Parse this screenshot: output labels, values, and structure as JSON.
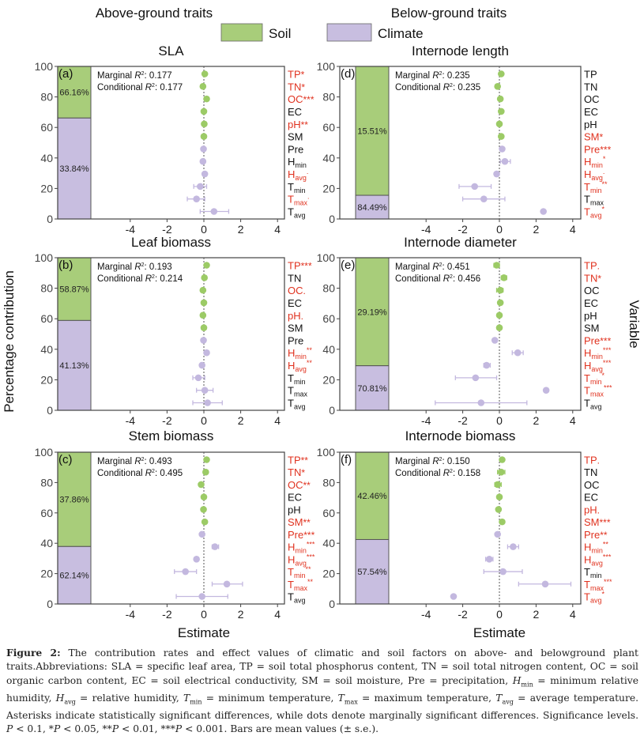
{
  "headers": {
    "above": "Above-ground traits",
    "below": "Below-ground traits"
  },
  "legend": [
    {
      "label": "Soil",
      "color": "#a8cd7a"
    },
    {
      "label": "Climate",
      "color": "#c8bee0"
    }
  ],
  "axis": {
    "ylabel": "Percentage contribution",
    "xlabel": "Estimate",
    "right_label": "Variable",
    "yticks": [
      0,
      20,
      40,
      60,
      80,
      100
    ],
    "xticks": [
      -4,
      -2,
      0,
      2,
      4
    ],
    "xlim": [
      -4.3,
      4.3
    ]
  },
  "colors": {
    "soil": "#a8cd7a",
    "climate": "#c8bee0",
    "soil_dot": "#9ccb66",
    "climate_dot": "#c3b8df",
    "sig": "#e0321f",
    "nonsig": "#111111"
  },
  "chart_data": [
    {
      "type": "scatter",
      "panel": "(a)",
      "title": "SLA",
      "soil_pct": "66.16%",
      "climate_pct": "33.84%",
      "soil_value": 66.16,
      "marginal": "Marginal R²: 0.177",
      "marginal_val": "0.177",
      "conditional_val": "0.177",
      "vars": [
        {
          "n": "TP",
          "s": "",
          "sig": "*",
          "est": 0.05
        },
        {
          "n": "TN",
          "s": "",
          "sig": "*",
          "est": -0.05
        },
        {
          "n": "OC",
          "s": "",
          "sig": "***",
          "est": 0.15
        },
        {
          "n": "EC",
          "s": "",
          "sig": "",
          "est": 0
        },
        {
          "n": "pH",
          "s": "",
          "sig": "**",
          "est": 0.02
        },
        {
          "n": "SM",
          "s": "",
          "sig": "",
          "est": 0
        },
        {
          "n": "Pre",
          "s": "",
          "sig": "",
          "est": -0.02
        },
        {
          "n": "H",
          "s": "min",
          "sig": "",
          "est": -0.05
        },
        {
          "n": "H",
          "s": "avg",
          "sig": ".",
          "est": 0.05
        },
        {
          "n": "T",
          "s": "min",
          "sig": "",
          "est": -0.2,
          "lo": -0.55,
          "hi": 0.15
        },
        {
          "n": "T",
          "s": "max",
          "sig": ".",
          "est": -0.4,
          "lo": -0.9,
          "hi": 0.05
        },
        {
          "n": "T",
          "s": "avg",
          "sig": "",
          "est": 0.55,
          "lo": -0.2,
          "hi": 1.35
        }
      ]
    },
    {
      "type": "scatter",
      "panel": "(b)",
      "title": "Leaf biomass",
      "soil_pct": "58.87%",
      "climate_pct": "41.13%",
      "soil_value": 58.87,
      "marginal_val": "0.193",
      "conditional_val": "0.214",
      "vars": [
        {
          "n": "TP",
          "s": "",
          "sig": "***",
          "est": 0.15
        },
        {
          "n": "TN",
          "s": "",
          "sig": "",
          "est": 0.03
        },
        {
          "n": "OC",
          "s": "",
          "sig": ".",
          "est": -0.05
        },
        {
          "n": "EC",
          "s": "",
          "sig": "",
          "est": 0
        },
        {
          "n": "pH",
          "s": "",
          "sig": ".",
          "est": -0.05
        },
        {
          "n": "SM",
          "s": "",
          "sig": "",
          "est": 0
        },
        {
          "n": "Pre",
          "s": "",
          "sig": "",
          "est": -0.02
        },
        {
          "n": "H",
          "s": "min",
          "sig": "**",
          "est": 0.15
        },
        {
          "n": "H",
          "s": "avg",
          "sig": "**",
          "est": -0.1
        },
        {
          "n": "T",
          "s": "min",
          "sig": "",
          "est": -0.3,
          "lo": -0.6,
          "hi": 0.05
        },
        {
          "n": "T",
          "s": "max",
          "sig": "",
          "est": 0.05,
          "lo": -0.4,
          "hi": 0.5
        },
        {
          "n": "T",
          "s": "avg",
          "sig": "",
          "est": 0.2,
          "lo": -0.6,
          "hi": 1.0
        }
      ]
    },
    {
      "type": "scatter",
      "panel": "(c)",
      "title": "Stem biomass",
      "soil_pct": "37.86%",
      "climate_pct": "62.14%",
      "soil_value": 37.86,
      "marginal_val": "0.493",
      "conditional_val": "0.495",
      "vars": [
        {
          "n": "TP",
          "s": "",
          "sig": "**",
          "est": 0.15
        },
        {
          "n": "TN",
          "s": "",
          "sig": "*",
          "est": 0.1
        },
        {
          "n": "OC",
          "s": "",
          "sig": "**",
          "est": -0.15
        },
        {
          "n": "EC",
          "s": "",
          "sig": "",
          "est": 0
        },
        {
          "n": "pH",
          "s": "",
          "sig": "",
          "est": -0.02
        },
        {
          "n": "SM",
          "s": "",
          "sig": "**",
          "est": 0.05
        },
        {
          "n": "Pre",
          "s": "",
          "sig": "***",
          "est": -0.1
        },
        {
          "n": "H",
          "s": "min",
          "sig": "***",
          "est": 0.6,
          "lo": 0.45,
          "hi": 0.8
        },
        {
          "n": "H",
          "s": "avg",
          "sig": "***",
          "est": -0.4
        },
        {
          "n": "T",
          "s": "min",
          "sig": "**",
          "est": -1.0,
          "lo": -1.6,
          "hi": -0.4
        },
        {
          "n": "T",
          "s": "max",
          "sig": "**",
          "est": 1.25,
          "lo": 0.45,
          "hi": 2.1
        },
        {
          "n": "T",
          "s": "avg",
          "sig": "",
          "est": -0.1,
          "lo": -1.5,
          "hi": 1.3
        }
      ]
    },
    {
      "type": "scatter",
      "panel": "(d)",
      "title": "Internode length",
      "soil_pct": "15.51%",
      "climate_pct": "84.49%",
      "soil_value": 15.51,
      "marginal_val": "0.235",
      "conditional_val": "0.235",
      "vars": [
        {
          "n": "TP",
          "s": "",
          "sig": "",
          "est": 0.1
        },
        {
          "n": "TN",
          "s": "",
          "sig": "",
          "est": -0.1
        },
        {
          "n": "OC",
          "s": "",
          "sig": "",
          "est": 0.05
        },
        {
          "n": "EC",
          "s": "",
          "sig": "",
          "est": 0.1
        },
        {
          "n": "pH",
          "s": "",
          "sig": "",
          "est": 0
        },
        {
          "n": "SM",
          "s": "",
          "sig": "*",
          "est": 0.1
        },
        {
          "n": "Pre",
          "s": "",
          "sig": "***",
          "est": 0.15
        },
        {
          "n": "H",
          "s": "min",
          "sig": "*",
          "est": 0.3,
          "lo": 0.05,
          "hi": 0.6
        },
        {
          "n": "H",
          "s": "avg",
          "sig": ".",
          "est": -0.15
        },
        {
          "n": "T",
          "s": "min",
          "sig": "**",
          "est": -1.35,
          "lo": -2.2,
          "hi": -0.45
        },
        {
          "n": "T",
          "s": "max",
          "sig": "",
          "est": -0.85,
          "lo": -2.0,
          "hi": 0.3
        },
        {
          "n": "T",
          "s": "avg",
          "sig": "*",
          "est": 2.4
        }
      ]
    },
    {
      "type": "scatter",
      "panel": "(e)",
      "title": "Internode diameter",
      "soil_pct": "29.19%",
      "climate_pct": "70.81%",
      "soil_value": 29.19,
      "marginal_val": "0.451",
      "conditional_val": "0.456",
      "vars": [
        {
          "n": "TP",
          "s": "",
          "sig": ".",
          "est": -0.15,
          "lo": -0.3,
          "hi": 0
        },
        {
          "n": "TN",
          "s": "",
          "sig": "*",
          "est": 0.25,
          "lo": 0.1,
          "hi": 0.4
        },
        {
          "n": "OC",
          "s": "",
          "sig": "",
          "est": 0.05,
          "lo": -0.15,
          "hi": 0.2
        },
        {
          "n": "EC",
          "s": "",
          "sig": "",
          "est": 0.05
        },
        {
          "n": "pH",
          "s": "",
          "sig": "",
          "est": 0
        },
        {
          "n": "SM",
          "s": "",
          "sig": "",
          "est": 0
        },
        {
          "n": "Pre",
          "s": "",
          "sig": "***",
          "est": -0.25
        },
        {
          "n": "H",
          "s": "min",
          "sig": "***",
          "est": 1.0,
          "lo": 0.7,
          "hi": 1.3
        },
        {
          "n": "H",
          "s": "avg",
          "sig": "***",
          "est": -0.7,
          "lo": -0.85,
          "hi": -0.5
        },
        {
          "n": "T",
          "s": "min",
          "sig": "*",
          "est": -1.3,
          "lo": -2.4,
          "hi": -0.15
        },
        {
          "n": "T",
          "s": "max",
          "sig": "***",
          "est": 2.55
        },
        {
          "n": "T",
          "s": "avg",
          "sig": "",
          "est": -1.0,
          "lo": -3.5,
          "hi": 1.5
        }
      ]
    },
    {
      "type": "scatter",
      "panel": "(f)",
      "title": "Internode biomass",
      "soil_pct": "42.46%",
      "climate_pct": "57.54%",
      "soil_value": 42.46,
      "marginal_val": "0.150",
      "conditional_val": "0.158",
      "vars": [
        {
          "n": "TP",
          "s": "",
          "sig": ".",
          "est": 0.15
        },
        {
          "n": "TN",
          "s": "",
          "sig": "",
          "est": 0.1,
          "lo": -0.1,
          "hi": 0.3
        },
        {
          "n": "OC",
          "s": "",
          "sig": "",
          "est": -0.1,
          "lo": -0.25,
          "hi": 0.1
        },
        {
          "n": "EC",
          "s": "",
          "sig": "",
          "est": 0
        },
        {
          "n": "pH",
          "s": "",
          "sig": ".",
          "est": -0.05
        },
        {
          "n": "SM",
          "s": "",
          "sig": "***",
          "est": 0.15
        },
        {
          "n": "Pre",
          "s": "",
          "sig": "**",
          "est": -0.1
        },
        {
          "n": "H",
          "s": "min",
          "sig": "**",
          "est": 0.75,
          "lo": 0.45,
          "hi": 1.05
        },
        {
          "n": "H",
          "s": "avg",
          "sig": "***",
          "est": -0.55,
          "lo": -0.75,
          "hi": -0.35
        },
        {
          "n": "T",
          "s": "min",
          "sig": "",
          "est": 0.2,
          "lo": -0.85,
          "hi": 1.25
        },
        {
          "n": "T",
          "s": "max",
          "sig": "***",
          "est": 2.5,
          "lo": 1.05,
          "hi": 3.9
        },
        {
          "n": "T",
          "s": "avg",
          "sig": "*",
          "est": -2.5
        }
      ]
    }
  ],
  "r2_labels": {
    "marginal": "Marginal ",
    "conditional": "Conditional ",
    "r": "R",
    "sup": "2",
    "colon": ": "
  },
  "caption": [
    {
      "t": "Figure 2:",
      "b": 1
    },
    {
      "t": " The contribution rates and effect values of climatic and soil factors on above- and belowground plant traits.Abbreviations: SLA = specific leaf area, TP = soil total phosphorus content, TN = soil total nitrogen content, OC = soil organic carbon content, EC = soil electrical conductivity, SM = soil moisture, Pre = precipitation, "
    },
    {
      "t": "H",
      "i": 1
    },
    {
      "t": "min",
      "sub": 1
    },
    {
      "t": " = minimum relative humidity, "
    },
    {
      "t": "H",
      "i": 1
    },
    {
      "t": "avg",
      "sub": 1
    },
    {
      "t": " = relative humidity, "
    },
    {
      "t": "T",
      "i": 1
    },
    {
      "t": "min",
      "sub": 1
    },
    {
      "t": " = minimum temperature, "
    },
    {
      "t": "T",
      "i": 1
    },
    {
      "t": "max",
      "sub": 1
    },
    {
      "t": " = maximum temperature, "
    },
    {
      "t": "T",
      "i": 1
    },
    {
      "t": "avg",
      "sub": 1
    },
    {
      "t": " = average temperature. Asterisks indicate statistically significant differences, while dots denote marginally significant differences. Significance levels. "
    },
    {
      "t": "P",
      "i": 1
    },
    {
      "t": " < 0.1, *"
    },
    {
      "t": "P",
      "i": 1
    },
    {
      "t": " < 0.05, **"
    },
    {
      "t": "P",
      "i": 1
    },
    {
      "t": " < 0.01, ***"
    },
    {
      "t": "P",
      "i": 1
    },
    {
      "t": " < 0.001. Bars are mean values (± s.e.)."
    }
  ]
}
